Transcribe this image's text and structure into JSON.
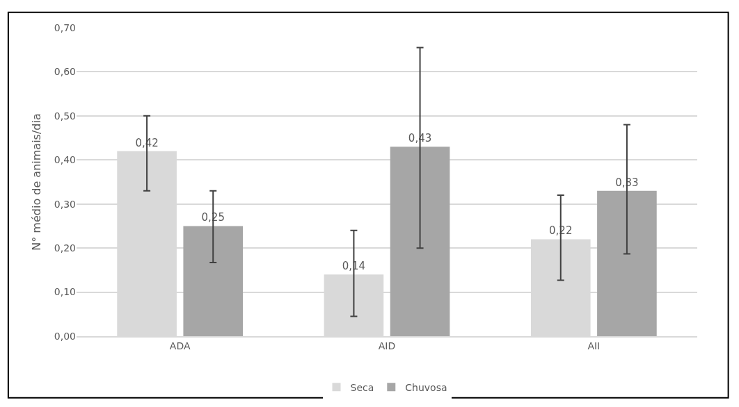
{
  "chart_data": {
    "type": "bar",
    "ylabel": "N° médio de animais/dia",
    "categories": [
      "ADA",
      "AID",
      "AII"
    ],
    "series": [
      {
        "name": "Seca",
        "color": "#d9d9d9",
        "values": [
          0.42,
          0.14,
          0.22
        ],
        "value_labels": [
          "0,42",
          "0,14",
          "0,22"
        ],
        "errors": [
          [
            0.33,
            0.5
          ],
          [
            0.045,
            0.24
          ],
          [
            0.127,
            0.32
          ]
        ]
      },
      {
        "name": "Chuvosa",
        "color": "#a6a6a6",
        "values": [
          0.25,
          0.43,
          0.33
        ],
        "value_labels": [
          "0,25",
          "0,43",
          "0,33"
        ],
        "errors": [
          [
            0.167,
            0.33
          ],
          [
            0.2,
            0.655
          ],
          [
            0.187,
            0.48
          ]
        ]
      }
    ],
    "ylim": [
      0,
      0.7
    ],
    "yticks": [
      {
        "value": 0,
        "label": "0,00"
      },
      {
        "value": 0.1,
        "label": "0,10"
      },
      {
        "value": 0.2,
        "label": "0,20"
      },
      {
        "value": 0.3,
        "label": "0,30"
      },
      {
        "value": 0.4,
        "label": "0,40"
      },
      {
        "value": 0.5,
        "label": "0,50"
      },
      {
        "value": 0.6,
        "label": "0,60"
      },
      {
        "value": 0.7,
        "label": "0,70"
      }
    ],
    "grid": "y",
    "legend": "bottom"
  }
}
